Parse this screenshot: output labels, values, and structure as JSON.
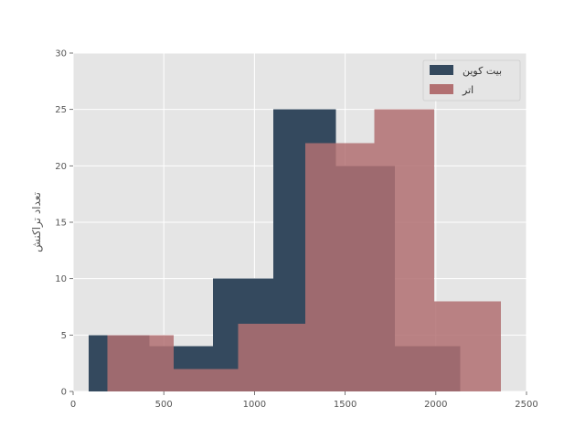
{
  "chart_data": {
    "type": "bar",
    "title": "",
    "xlabel": "",
    "ylabel": "تعداد تراکنش",
    "xlim": [
      0,
      2500
    ],
    "ylim": [
      0,
      30
    ],
    "xticks": [
      0,
      500,
      1000,
      1500,
      2000,
      2500
    ],
    "yticks": [
      0,
      5,
      10,
      15,
      20,
      25,
      30
    ],
    "grid": true,
    "legend_position": "top-right",
    "series": [
      {
        "name": "بیت کوین",
        "color": "#34495e",
        "bin_edges": [
          85,
          190,
          420,
          550,
          770,
          905,
          1105,
          1280,
          1450,
          1660,
          1775,
          1975,
          2135
        ],
        "counts": [
          5,
          5,
          4,
          4,
          10,
          10,
          25,
          25,
          20,
          20,
          4,
          4
        ]
      },
      {
        "name": "اتر",
        "color": "#b27072",
        "bin_edges": [
          190,
          420,
          555,
          910,
          1280,
          1450,
          1660,
          1990,
          2360
        ],
        "counts": [
          5,
          5,
          2,
          6,
          22,
          22,
          25,
          8
        ]
      }
    ]
  }
}
